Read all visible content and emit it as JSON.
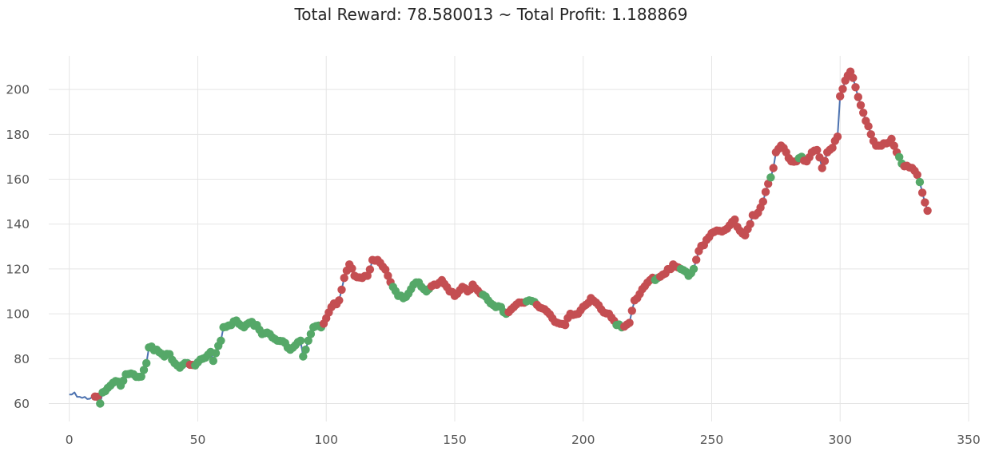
{
  "chart_data": {
    "type": "line",
    "title": "Total Reward: 78.580013 ~ Total Profit: 1.188869",
    "xlabel": "",
    "ylabel": "",
    "xlim": [
      -8,
      350
    ],
    "ylim": [
      52,
      215
    ],
    "grid": true,
    "x_ticks": [
      0,
      50,
      100,
      150,
      200,
      250,
      300,
      350
    ],
    "y_ticks": [
      60,
      80,
      100,
      120,
      140,
      160,
      180,
      200
    ],
    "x_tick_labels": [
      "0",
      "50",
      "100",
      "150",
      "200",
      "250",
      "300",
      "350"
    ],
    "y_tick_labels": [
      "60",
      "80",
      "100",
      "120",
      "140",
      "160",
      "180",
      "200"
    ],
    "colors": {
      "line": "#4c72b0",
      "buy": "#55a868",
      "sell": "#c44e52"
    },
    "anchors": [
      [
        0,
        64
      ],
      [
        2,
        65
      ],
      [
        3,
        63
      ],
      [
        5,
        62.5
      ],
      [
        7,
        62
      ],
      [
        9,
        63
      ],
      [
        11,
        63
      ],
      [
        12,
        60
      ],
      [
        13,
        65
      ],
      [
        15,
        67
      ],
      [
        18,
        70
      ],
      [
        20,
        68
      ],
      [
        22,
        73
      ],
      [
        25,
        73
      ],
      [
        28,
        72
      ],
      [
        30,
        78
      ],
      [
        31,
        85
      ],
      [
        34,
        84
      ],
      [
        37,
        81
      ],
      [
        39,
        82
      ],
      [
        41,
        78
      ],
      [
        43,
        76
      ],
      [
        46,
        78
      ],
      [
        49,
        77
      ],
      [
        52,
        80
      ],
      [
        55,
        83
      ],
      [
        56,
        79
      ],
      [
        59,
        88
      ],
      [
        60,
        94
      ],
      [
        63,
        95
      ],
      [
        65,
        97
      ],
      [
        68,
        94
      ],
      [
        70,
        96
      ],
      [
        73,
        95
      ],
      [
        75,
        91
      ],
      [
        78,
        91
      ],
      [
        81,
        88
      ],
      [
        84,
        87
      ],
      [
        86,
        84
      ],
      [
        88,
        86
      ],
      [
        90,
        88
      ],
      [
        91,
        81
      ],
      [
        93,
        88
      ],
      [
        95,
        94
      ],
      [
        98,
        94
      ],
      [
        100,
        98
      ],
      [
        102,
        103
      ],
      [
        105,
        106
      ],
      [
        107,
        116
      ],
      [
        109,
        122
      ],
      [
        111,
        117
      ],
      [
        114,
        116
      ],
      [
        116,
        117
      ],
      [
        118,
        124
      ],
      [
        120,
        124
      ],
      [
        122,
        121
      ],
      [
        124,
        117
      ],
      [
        126,
        112
      ],
      [
        128,
        108
      ],
      [
        130,
        107
      ],
      [
        132,
        109
      ],
      [
        134,
        113
      ],
      [
        136,
        114
      ],
      [
        139,
        110
      ],
      [
        142,
        113
      ],
      [
        145,
        115
      ],
      [
        148,
        110
      ],
      [
        150,
        108
      ],
      [
        153,
        112
      ],
      [
        155,
        110
      ],
      [
        157,
        113
      ],
      [
        160,
        109
      ],
      [
        163,
        106
      ],
      [
        166,
        103
      ],
      [
        168,
        103
      ],
      [
        170,
        100
      ],
      [
        173,
        103
      ],
      [
        176,
        105
      ],
      [
        179,
        106
      ],
      [
        182,
        104
      ],
      [
        185,
        102
      ],
      [
        188,
        98
      ],
      [
        190,
        96
      ],
      [
        193,
        95
      ],
      [
        195,
        100
      ],
      [
        198,
        100
      ],
      [
        201,
        104
      ],
      [
        203,
        107
      ],
      [
        205,
        105
      ],
      [
        207,
        102
      ],
      [
        210,
        100
      ],
      [
        213,
        95
      ],
      [
        215,
        94
      ],
      [
        218,
        96
      ],
      [
        220,
        106
      ],
      [
        223,
        111
      ],
      [
        226,
        115
      ],
      [
        229,
        116
      ],
      [
        232,
        118
      ],
      [
        235,
        122
      ],
      [
        238,
        120
      ],
      [
        241,
        117
      ],
      [
        243,
        120
      ],
      [
        245,
        128
      ],
      [
        248,
        133
      ],
      [
        250,
        136
      ],
      [
        253,
        137
      ],
      [
        256,
        138
      ],
      [
        259,
        142
      ],
      [
        261,
        137
      ],
      [
        263,
        135
      ],
      [
        265,
        140
      ],
      [
        266,
        144
      ],
      [
        268,
        145
      ],
      [
        270,
        150
      ],
      [
        272,
        158
      ],
      [
        274,
        165
      ],
      [
        275,
        172
      ],
      [
        277,
        175
      ],
      [
        279,
        172
      ],
      [
        281,
        168
      ],
      [
        283,
        168
      ],
      [
        285,
        170
      ],
      [
        287,
        168
      ],
      [
        289,
        172
      ],
      [
        291,
        173
      ],
      [
        293,
        165
      ],
      [
        295,
        172
      ],
      [
        297,
        174
      ],
      [
        299,
        179
      ],
      [
        300,
        197
      ],
      [
        302,
        204
      ],
      [
        304,
        208
      ],
      [
        306,
        201
      ],
      [
        308,
        193
      ],
      [
        310,
        186
      ],
      [
        312,
        180
      ],
      [
        314,
        175
      ],
      [
        316,
        175
      ],
      [
        318,
        176
      ],
      [
        320,
        178
      ],
      [
        322,
        172
      ],
      [
        324,
        167
      ],
      [
        326,
        166
      ],
      [
        328,
        165
      ],
      [
        330,
        162
      ],
      [
        332,
        154
      ],
      [
        334,
        146
      ]
    ],
    "sell_ranges": [
      [
        10,
        11
      ],
      [
        47,
        48
      ],
      [
        99,
        125
      ],
      [
        141,
        160
      ],
      [
        171,
        177
      ],
      [
        182,
        212
      ],
      [
        216,
        227
      ],
      [
        230,
        237
      ],
      [
        244,
        334
      ]
    ],
    "buy_overrides": [
      273,
      284,
      285,
      323,
      324,
      331
    ]
  }
}
